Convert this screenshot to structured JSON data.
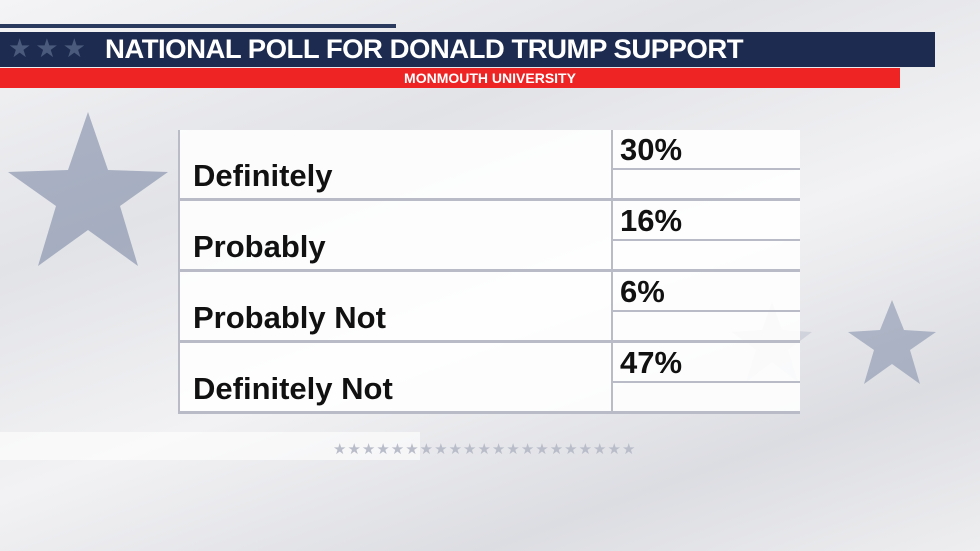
{
  "header": {
    "title": "NATIONAL POLL FOR DONALD TRUMP SUPPORT",
    "subtitle": "MONMOUTH UNIVERSITY"
  },
  "colors": {
    "navy": "#1c2b4f",
    "red": "#ee2424",
    "star": "#5b6b90"
  },
  "chart_data": {
    "type": "table",
    "title": "NATIONAL POLL FOR DONALD TRUMP SUPPORT",
    "subtitle": "MONMOUTH UNIVERSITY",
    "rows": [
      {
        "label": "Definitely",
        "value": "30%"
      },
      {
        "label": "Probably",
        "value": "16%"
      },
      {
        "label": "Probably Not",
        "value": "6%"
      },
      {
        "label": "Definitely Not",
        "value": "47%"
      }
    ]
  }
}
